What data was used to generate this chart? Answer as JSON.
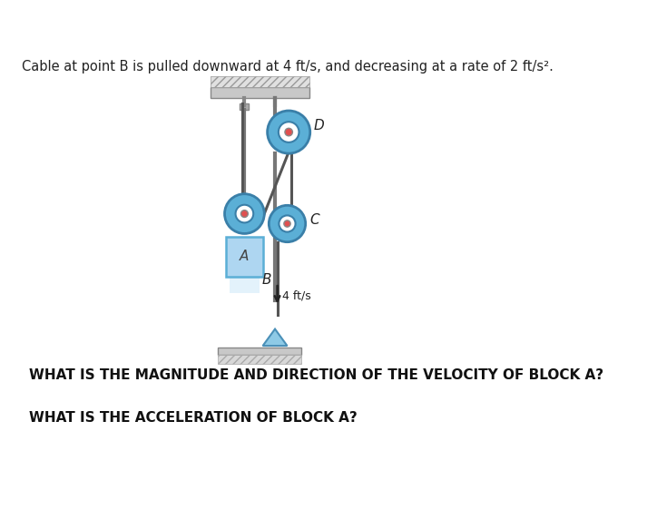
{
  "title": "Cable at point B is pulled downward at 4 ft/s, and decreasing at a rate of 2 ft/s².",
  "question1": "WHAT IS THE MAGNITUDE AND DIRECTION OF THE VELOCITY OF BLOCK A?",
  "question2": "WHAT IS THE ACCELERATION OF BLOCK A?",
  "bg_color": "#ffffff",
  "title_fontsize": 10.5,
  "question_fontsize": 11,
  "label_D": "D",
  "label_C": "C",
  "label_B": "B",
  "label_A": "A",
  "arrow_label": "4 ft/s",
  "pulley_color_outer": "#5bafd6",
  "pulley_hub_color": "#8ecae6",
  "pulley_center_color": "#e05050",
  "cable_color": "#555555",
  "rod_color": "#777777",
  "block_face": "#aed6f1",
  "block_edge": "#5bafd6",
  "ceiling_face": "#c8c8c8",
  "ceiling_hatch": "#999999",
  "floor_face": "#c8c8c8",
  "anchor_face": "#8ecae6",
  "anchor_edge": "#4a90b8"
}
